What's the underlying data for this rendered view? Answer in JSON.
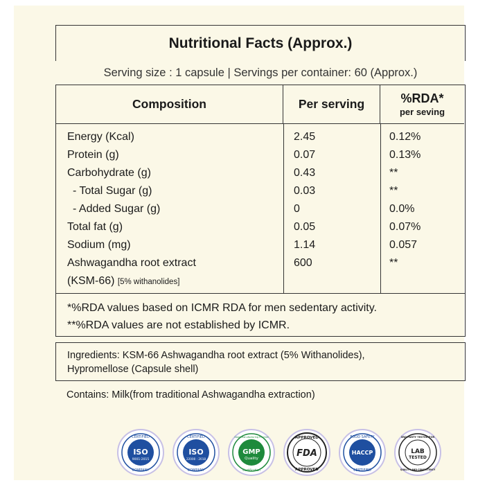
{
  "title": "Nutritional Facts (Approx.)",
  "serving_line": "Serving size : 1 capsule | Servings per container: 60 (Approx.)",
  "table": {
    "headers": {
      "composition": "Composition",
      "per_serving": "Per serving",
      "rda": "%RDA*",
      "rda_sub": "per seving"
    },
    "rows": [
      {
        "name": "Energy (Kcal)",
        "value": "2.45",
        "rda": "0.12%"
      },
      {
        "name": "Protein (g)",
        "value": "0.07",
        "rda": "0.13%"
      },
      {
        "name": "Carbohydrate (g)",
        "value": "0.43",
        "rda": "**"
      },
      {
        "name": "- Total Sugar (g)",
        "value": "0.03",
        "rda": "**"
      },
      {
        "name": "- Added Sugar (g)",
        "value": "0",
        "rda": "0.0%"
      },
      {
        "name": "Total fat (g)",
        "value": "0.05",
        "rda": "0.07%"
      },
      {
        "name": "Sodium (mg)",
        "value": "1.14",
        "rda": "0.057"
      },
      {
        "name": "Ashwagandha root  extract",
        "value": "600",
        "rda": "**"
      }
    ],
    "last_row_line2": "(KSM-66)",
    "last_row_note": "[5% withanolides]"
  },
  "footnotes": [
    "*%RDA values based on ICMR RDA for men sedentary activity.",
    "**%RDA values are not established by ICMR."
  ],
  "ingredients": {
    "line1": "Ingredients: KSM-66 Ashwagandha root extract (5% Withanolides),",
    "line2": "Hypromellose (Capsule shell)"
  },
  "contains": "Contains: Milk(from traditional Ashwagandha extraction)",
  "badges": [
    {
      "icon": "iso-9001-icon",
      "top": "CERTIFIED",
      "main": "ISO",
      "sub": "9001:2015",
      "bottom": "COMPANY",
      "color": "#1f4fa0"
    },
    {
      "icon": "iso-22000-icon",
      "top": "CERTIFIED",
      "main": "ISO",
      "sub": "22000 : 2018",
      "bottom": "COMPANY",
      "color": "#1f4fa0"
    },
    {
      "icon": "gmp-quality-icon",
      "top": "Good Manufacturing Practice",
      "main": "GMP",
      "sub": "Quality",
      "bottom": "Certification",
      "color": "#1e8a3c"
    },
    {
      "icon": "fda-approved-icon",
      "top": "APPROVED",
      "main": "FDA",
      "sub": "",
      "bottom": "APPROVED",
      "color": "#222222"
    },
    {
      "icon": "haccp-icon",
      "top": "FOOD SAFETY",
      "main": "HACCP",
      "sub": "",
      "bottom": "CERTIFIED",
      "color": "#1f4fa0"
    },
    {
      "icon": "lab-tested-icon",
      "top": "3RD PARTY TESTED FOR",
      "main": "LAB",
      "sub": "TESTED",
      "bottom": "QUALITY AND CONSISTENCY",
      "color": "#222222"
    }
  ]
}
